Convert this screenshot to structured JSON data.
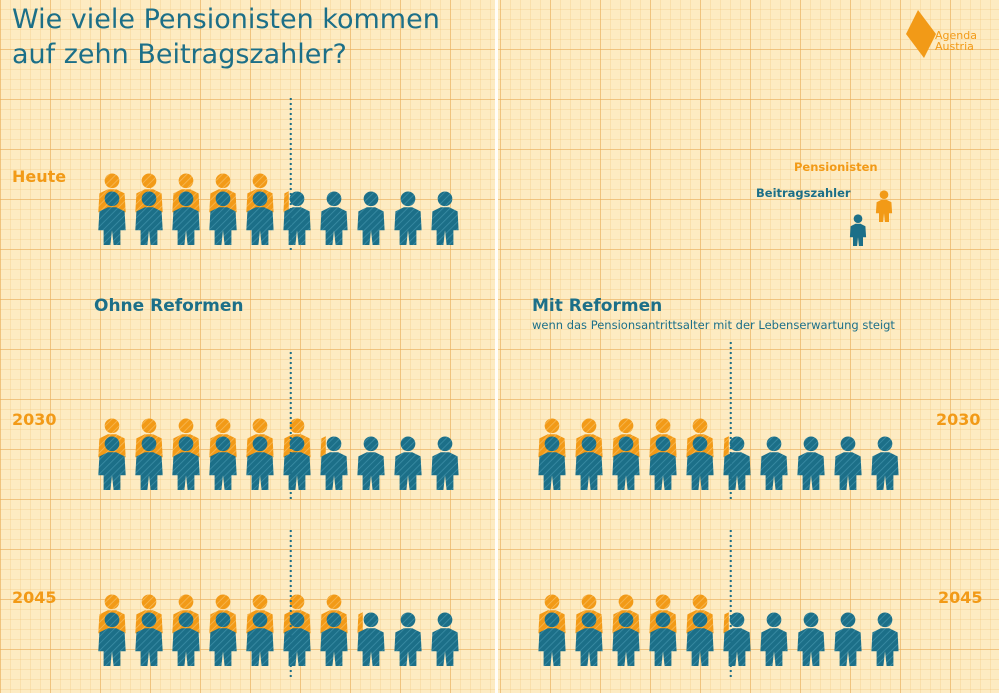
{
  "title_line1": "Wie viele Pensionisten kommen",
  "title_line2": "auf zehn Beitragszahler?",
  "logo": {
    "line1": "Agenda",
    "line2": "Austria"
  },
  "legend": {
    "pensioners": "Pensionisten",
    "contributors": "Beitragszahler"
  },
  "sections": {
    "left_title": "Ohne Reformen",
    "right_title": "Mit Reformen",
    "right_subtitle": "wenn das Pensionsantrittsalter mit der Lebenserwartung steigt"
  },
  "colors": {
    "pensioners": "#f29a17",
    "contributors": "#1c6f88",
    "background": "#fdebc2"
  },
  "chart_data": {
    "type": "pictogram",
    "unit": "Pensionisten pro 10 Beitragszahler",
    "contributors_per_row": 10,
    "rows": [
      {
        "label": "Heute",
        "scenario": "Heute",
        "pensioners": 5.2
      },
      {
        "label": "2030",
        "scenario": "Ohne Reformen",
        "pensioners": 6.2
      },
      {
        "label": "2045",
        "scenario": "Ohne Reformen",
        "pensioners": 7.2
      },
      {
        "label": "2030",
        "scenario": "Mit Reformen",
        "pensioners": 5.2
      },
      {
        "label": "2045",
        "scenario": "Mit Reformen",
        "pensioners": 5.2
      }
    ]
  }
}
